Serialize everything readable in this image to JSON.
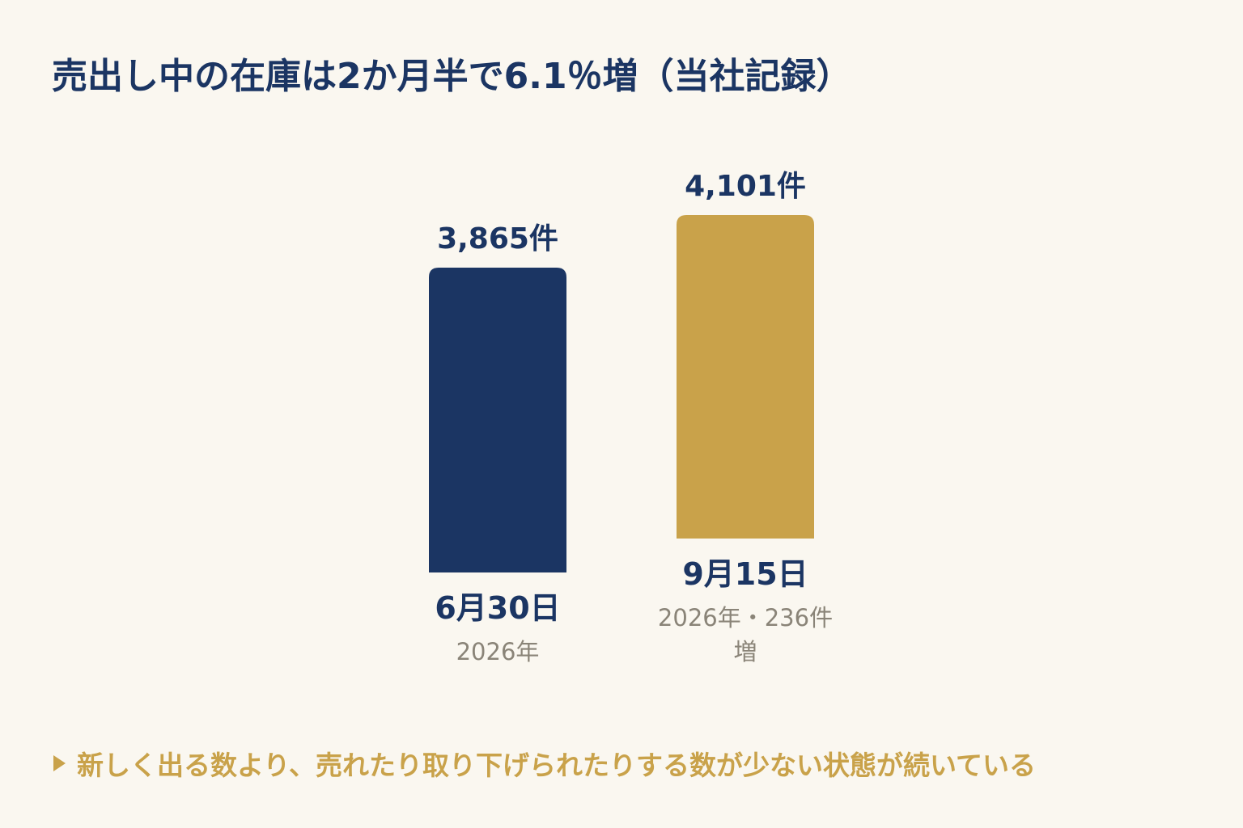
{
  "title": "売出し中の在庫は2か月半で6.1％増（当社記録）",
  "footnote": "新しく出る数より、売れたり取り下げられたりする数が少ない状態が続いている",
  "colors": {
    "bar_1": "#1B3563",
    "bar_2": "#C9A24A",
    "accent": "#C9A24A",
    "text_primary": "#1B3563",
    "text_secondary": "#8A8478",
    "background": "#FAF7F0"
  },
  "chart_data": {
    "type": "bar",
    "title": "売出し中の在庫は2か月半で6.1％増（当社記録）",
    "categories": [
      "6月30日",
      "9月15日"
    ],
    "values": [
      3865,
      4101
    ],
    "value_labels": [
      "3,865件",
      "4,101件"
    ],
    "sublabels": [
      [
        "2026年"
      ],
      [
        "2026年・236件",
        "増"
      ]
    ],
    "unit": "件",
    "grid": false,
    "axes_visible": false
  }
}
